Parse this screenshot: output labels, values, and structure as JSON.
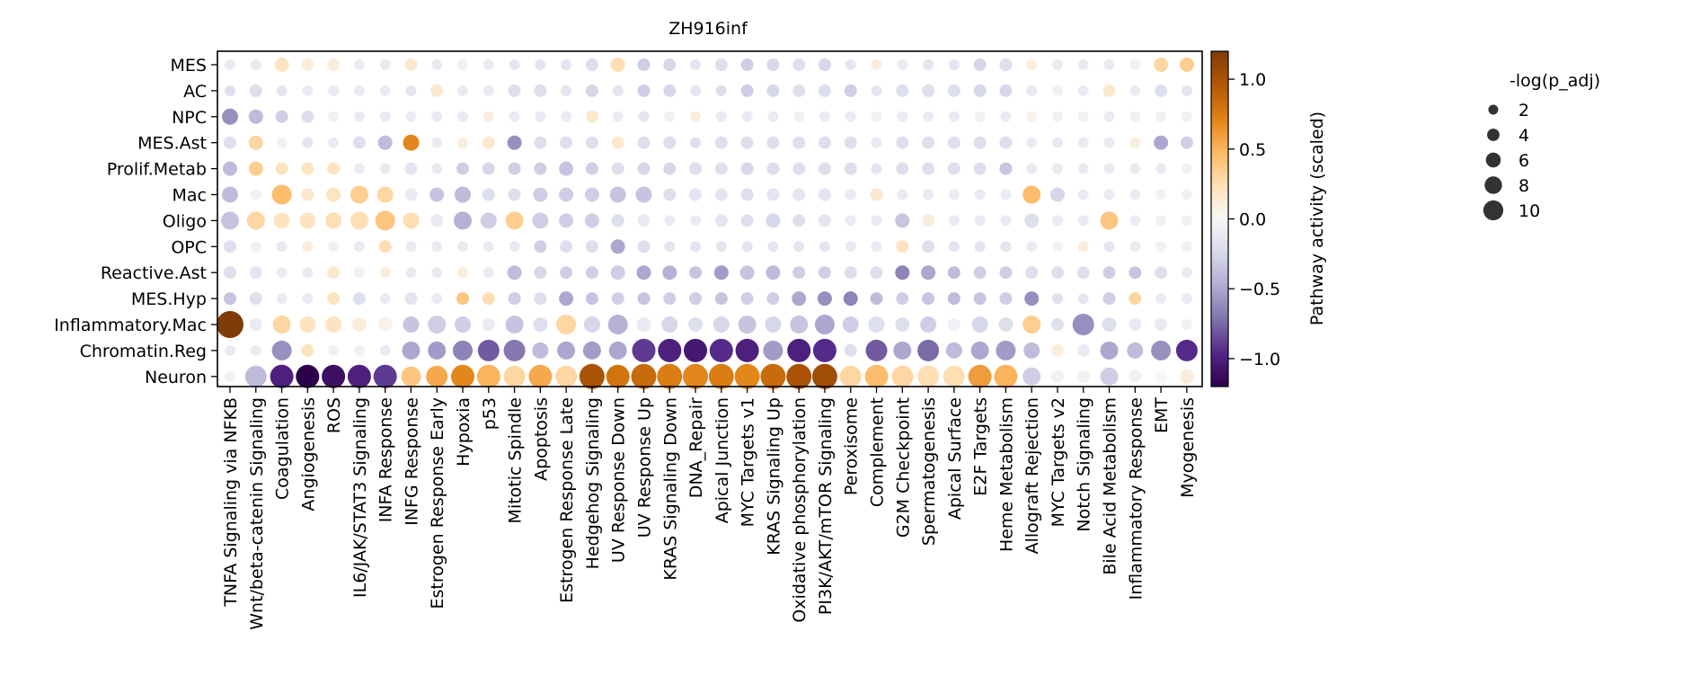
{
  "chart_data": {
    "type": "dotplot",
    "title": "ZH916inf",
    "rows": [
      "MES",
      "AC",
      "NPC",
      "MES.Ast",
      "Prolif.Metab",
      "Mac",
      "Oligo",
      "OPC",
      "Reactive.Ast",
      "MES.Hyp",
      "Inflammatory.Mac",
      "Chromatin.Reg",
      "Neuron"
    ],
    "columns": [
      "TNFA Signaling via NFKB",
      "Wnt/beta-catenin Signaling",
      "Coagulation",
      "Angiogenesis",
      "ROS",
      "IL6/JAK/STAT3 Signaling",
      "INFA Response",
      "INFG Response",
      "Estrogen Response Early",
      "Hypoxia",
      "p53",
      "Mitotic Spindle",
      "Apoptosis",
      "Estrogen Response Late",
      "Hedgehog Signaling",
      "UV Response Down",
      "UV Response Up",
      "KRAS Signaling Down",
      "DNA_Repair",
      "Apical Junction",
      "MYC Targets v1",
      "KRAS Signaling Up",
      "Oxidative phosphorylation",
      "PI3K/AKT/mTOR Signaling",
      "Peroxisome",
      "Complement",
      "G2M Checkpoint",
      "Spermatogenesis",
      "Apical Surface",
      "E2F Targets",
      "Heme Metabolism",
      "Allograft Rejection",
      "MYC Targets v2",
      "Notch Signaling",
      "Bile Acid Metabolism",
      "Inflammatory Response",
      "EMT",
      "Myogenesis"
    ],
    "activity": [
      [
        -0.1,
        -0.1,
        0.2,
        0.1,
        0.1,
        -0.1,
        -0.1,
        0.15,
        -0.1,
        -0.05,
        -0.1,
        -0.15,
        -0.15,
        -0.15,
        -0.2,
        0.25,
        -0.3,
        -0.25,
        -0.15,
        -0.2,
        -0.3,
        -0.25,
        -0.2,
        -0.25,
        -0.15,
        0.1,
        -0.1,
        -0.15,
        -0.15,
        -0.25,
        -0.2,
        0.1,
        -0.1,
        -0.1,
        -0.1,
        -0.05,
        0.3,
        0.35
      ],
      [
        -0.2,
        -0.2,
        -0.15,
        -0.1,
        -0.1,
        -0.1,
        -0.1,
        -0.15,
        0.15,
        -0.1,
        -0.1,
        -0.2,
        -0.2,
        -0.15,
        -0.25,
        -0.15,
        -0.3,
        -0.25,
        -0.15,
        -0.2,
        -0.3,
        -0.25,
        -0.2,
        -0.2,
        -0.3,
        -0.15,
        -0.2,
        -0.2,
        -0.2,
        -0.25,
        -0.25,
        -0.1,
        -0.05,
        -0.1,
        0.15,
        -0.1,
        -0.2,
        -0.15
      ],
      [
        -0.6,
        -0.4,
        -0.3,
        -0.2,
        -0.05,
        -0.1,
        -0.1,
        -0.1,
        -0.1,
        -0.1,
        0.1,
        -0.1,
        -0.1,
        -0.1,
        0.15,
        -0.1,
        -0.15,
        -0.05,
        0.1,
        -0.1,
        -0.1,
        -0.1,
        -0.05,
        -0.1,
        -0.1,
        -0.05,
        -0.1,
        -0.1,
        -0.1,
        -0.05,
        -0.1,
        0.05,
        -0.05,
        -0.05,
        -0.1,
        -0.05,
        -0.05,
        -0.05
      ],
      [
        -0.2,
        0.3,
        -0.05,
        -0.15,
        -0.1,
        -0.2,
        -0.4,
        0.7,
        -0.1,
        0.1,
        0.15,
        -0.6,
        -0.2,
        -0.2,
        -0.2,
        0.15,
        -0.2,
        -0.2,
        -0.2,
        -0.2,
        -0.2,
        -0.2,
        -0.2,
        -0.2,
        -0.2,
        -0.1,
        -0.2,
        -0.2,
        -0.2,
        -0.2,
        -0.2,
        -0.1,
        -0.1,
        -0.1,
        -0.1,
        0.1,
        -0.5,
        -0.3
      ],
      [
        -0.4,
        0.35,
        0.2,
        0.2,
        0.2,
        -0.1,
        -0.1,
        -0.15,
        -0.1,
        -0.3,
        -0.25,
        -0.3,
        -0.3,
        -0.35,
        -0.3,
        -0.2,
        -0.25,
        -0.25,
        -0.2,
        -0.2,
        -0.25,
        -0.2,
        -0.2,
        -0.2,
        -0.2,
        -0.15,
        -0.2,
        -0.2,
        -0.2,
        -0.2,
        -0.35,
        -0.1,
        -0.1,
        -0.1,
        -0.1,
        -0.1,
        -0.1,
        -0.05
      ],
      [
        -0.4,
        -0.05,
        0.45,
        0.15,
        0.2,
        0.35,
        0.3,
        -0.1,
        -0.35,
        -0.4,
        -0.2,
        -0.2,
        -0.3,
        -0.3,
        -0.3,
        -0.35,
        -0.35,
        -0.2,
        -0.15,
        -0.15,
        -0.2,
        -0.15,
        -0.15,
        -0.15,
        -0.1,
        0.15,
        -0.1,
        -0.1,
        -0.1,
        -0.1,
        -0.1,
        0.45,
        -0.25,
        -0.1,
        -0.1,
        -0.1,
        -0.05,
        -0.05
      ],
      [
        -0.35,
        0.3,
        0.2,
        0.2,
        0.25,
        0.25,
        0.4,
        0.25,
        -0.1,
        -0.45,
        -0.3,
        0.35,
        -0.3,
        -0.3,
        -0.3,
        -0.2,
        -0.1,
        -0.1,
        -0.1,
        -0.15,
        -0.2,
        -0.25,
        -0.2,
        -0.15,
        -0.1,
        -0.1,
        -0.35,
        0.1,
        -0.1,
        -0.1,
        -0.1,
        -0.2,
        -0.1,
        -0.1,
        0.4,
        -0.1,
        -0.05,
        -0.05
      ],
      [
        -0.2,
        -0.05,
        -0.1,
        0.1,
        -0.05,
        -0.1,
        0.25,
        -0.1,
        -0.1,
        -0.1,
        -0.1,
        -0.1,
        -0.3,
        -0.2,
        -0.2,
        -0.5,
        -0.2,
        -0.15,
        -0.15,
        -0.15,
        -0.15,
        -0.15,
        -0.15,
        -0.15,
        -0.1,
        -0.1,
        0.2,
        -0.2,
        -0.15,
        -0.15,
        -0.15,
        -0.1,
        -0.05,
        0.1,
        -0.15,
        -0.1,
        -0.05,
        -0.05
      ],
      [
        -0.2,
        -0.15,
        -0.1,
        -0.1,
        0.15,
        -0.05,
        0.1,
        -0.1,
        -0.1,
        0.1,
        -0.1,
        -0.4,
        -0.25,
        -0.3,
        -0.3,
        -0.3,
        -0.5,
        -0.45,
        -0.35,
        -0.55,
        -0.35,
        -0.4,
        -0.3,
        -0.3,
        -0.2,
        -0.2,
        -0.65,
        -0.5,
        -0.4,
        -0.3,
        -0.3,
        -0.2,
        -0.2,
        -0.2,
        -0.3,
        -0.35,
        -0.2,
        -0.1
      ],
      [
        -0.35,
        -0.2,
        -0.1,
        -0.1,
        0.2,
        -0.2,
        -0.1,
        -0.15,
        -0.1,
        0.4,
        0.25,
        -0.3,
        -0.2,
        -0.5,
        -0.35,
        -0.3,
        -0.35,
        -0.3,
        -0.3,
        -0.35,
        -0.3,
        -0.3,
        -0.5,
        -0.6,
        -0.65,
        -0.4,
        -0.3,
        -0.35,
        -0.4,
        -0.35,
        -0.3,
        -0.6,
        -0.2,
        -0.15,
        -0.3,
        0.3,
        -0.1,
        -0.1
      ],
      [
        1.2,
        -0.1,
        0.3,
        0.2,
        0.2,
        0.1,
        0.05,
        -0.35,
        -0.3,
        -0.3,
        -0.1,
        -0.35,
        -0.2,
        0.3,
        -0.25,
        -0.45,
        -0.1,
        -0.25,
        -0.2,
        -0.25,
        -0.35,
        -0.25,
        -0.35,
        -0.5,
        -0.3,
        -0.2,
        -0.2,
        -0.3,
        -0.05,
        -0.25,
        -0.2,
        0.35,
        -0.2,
        -0.6,
        -0.2,
        -0.1,
        -0.1,
        -0.05
      ],
      [
        -0.1,
        -0.1,
        -0.6,
        0.2,
        -0.05,
        -0.05,
        -0.1,
        -0.5,
        -0.55,
        -0.65,
        -0.8,
        -0.7,
        -0.4,
        -0.5,
        -0.55,
        -0.5,
        -0.9,
        -1.0,
        -1.05,
        -0.95,
        -1.0,
        -0.55,
        -1.0,
        -0.95,
        -0.2,
        -0.8,
        -0.5,
        -0.75,
        -0.4,
        -0.5,
        -0.55,
        -0.4,
        0.1,
        -0.1,
        -0.5,
        -0.4,
        -0.6,
        -0.95
      ],
      [
        -0.05,
        -0.4,
        -1.0,
        -1.2,
        -1.1,
        -1.0,
        -0.9,
        0.4,
        0.55,
        0.7,
        0.5,
        0.3,
        0.55,
        0.3,
        1.0,
        0.8,
        0.85,
        0.75,
        0.7,
        0.75,
        0.7,
        0.85,
        1.0,
        1.05,
        0.3,
        0.45,
        0.3,
        0.25,
        0.25,
        0.6,
        0.5,
        -0.3,
        -0.05,
        -0.05,
        -0.3,
        -0.05,
        0.0,
        0.1
      ]
    ],
    "size_levels": [
      [
        2,
        2,
        4,
        3,
        3,
        2,
        2,
        3,
        2,
        2,
        2,
        2,
        2,
        2,
        3,
        4,
        3,
        3,
        2,
        3,
        3,
        3,
        3,
        3,
        2,
        2,
        2,
        2,
        2,
        3,
        3,
        2,
        2,
        2,
        2,
        2,
        4,
        4
      ],
      [
        2,
        3,
        2,
        2,
        2,
        2,
        2,
        2,
        3,
        2,
        2,
        3,
        3,
        2,
        3,
        2,
        3,
        3,
        2,
        2,
        3,
        3,
        3,
        3,
        3,
        2,
        3,
        3,
        3,
        3,
        3,
        2,
        2,
        2,
        3,
        2,
        3,
        2
      ],
      [
        5,
        4,
        3,
        3,
        2,
        2,
        2,
        2,
        2,
        2,
        2,
        2,
        2,
        2,
        3,
        2,
        2,
        2,
        2,
        2,
        2,
        2,
        2,
        2,
        2,
        2,
        2,
        2,
        2,
        2,
        2,
        2,
        2,
        2,
        2,
        2,
        2,
        2
      ],
      [
        3,
        4,
        2,
        2,
        2,
        3,
        4,
        5,
        2,
        2,
        3,
        4,
        3,
        3,
        3,
        3,
        3,
        3,
        2,
        3,
        3,
        3,
        3,
        3,
        3,
        2,
        3,
        3,
        3,
        3,
        3,
        2,
        2,
        2,
        2,
        2,
        4,
        3
      ],
      [
        4,
        4,
        3,
        3,
        3,
        2,
        2,
        3,
        2,
        3,
        3,
        3,
        3,
        4,
        3,
        3,
        3,
        3,
        3,
        3,
        3,
        3,
        3,
        3,
        3,
        2,
        3,
        3,
        3,
        3,
        3,
        2,
        2,
        2,
        2,
        2,
        2,
        2
      ],
      [
        5,
        2,
        7,
        3,
        4,
        6,
        5,
        3,
        4,
        5,
        3,
        3,
        4,
        4,
        4,
        5,
        5,
        3,
        3,
        3,
        3,
        3,
        3,
        3,
        2,
        3,
        2,
        2,
        2,
        2,
        2,
        6,
        4,
        2,
        2,
        2,
        2,
        2
      ],
      [
        6,
        6,
        5,
        5,
        5,
        6,
        7,
        5,
        3,
        6,
        5,
        6,
        5,
        4,
        4,
        3,
        3,
        2,
        2,
        3,
        3,
        4,
        3,
        3,
        2,
        2,
        4,
        3,
        2,
        2,
        2,
        4,
        2,
        2,
        6,
        2,
        2,
        2
      ],
      [
        3,
        2,
        2,
        2,
        2,
        2,
        3,
        2,
        2,
        2,
        2,
        2,
        3,
        3,
        3,
        4,
        3,
        2,
        2,
        2,
        2,
        2,
        2,
        2,
        2,
        2,
        3,
        3,
        2,
        2,
        2,
        2,
        2,
        2,
        2,
        2,
        2,
        2
      ],
      [
        3,
        3,
        2,
        2,
        3,
        2,
        2,
        2,
        2,
        2,
        2,
        4,
        3,
        3,
        3,
        4,
        4,
        4,
        3,
        4,
        4,
        4,
        3,
        3,
        3,
        3,
        4,
        4,
        3,
        3,
        3,
        3,
        3,
        3,
        3,
        3,
        3,
        2
      ],
      [
        3,
        3,
        2,
        2,
        3,
        3,
        2,
        3,
        2,
        3,
        3,
        3,
        3,
        4,
        3,
        3,
        3,
        3,
        3,
        3,
        3,
        3,
        4,
        4,
        4,
        3,
        3,
        3,
        3,
        3,
        3,
        4,
        2,
        2,
        3,
        3,
        2,
        2
      ],
      [
        11,
        3,
        6,
        5,
        5,
        4,
        4,
        5,
        6,
        5,
        3,
        6,
        4,
        7,
        5,
        7,
        4,
        5,
        4,
        5,
        6,
        5,
        6,
        7,
        5,
        5,
        4,
        5,
        3,
        5,
        4,
        6,
        3,
        8,
        4,
        3,
        3,
        2
      ],
      [
        2,
        2,
        7,
        3,
        2,
        2,
        2,
        6,
        6,
        7,
        8,
        8,
        5,
        6,
        6,
        6,
        9,
        9,
        9,
        9,
        9,
        7,
        9,
        9,
        3,
        8,
        6,
        8,
        5,
        6,
        7,
        5,
        3,
        3,
        6,
        5,
        7,
        8
      ],
      [
        2,
        8,
        9,
        9,
        9,
        9,
        9,
        7,
        8,
        9,
        9,
        8,
        9,
        8,
        10,
        9,
        10,
        10,
        10,
        10,
        10,
        10,
        10,
        10,
        8,
        9,
        8,
        8,
        8,
        9,
        9,
        6,
        3,
        3,
        6,
        3,
        3,
        4
      ]
    ],
    "colorbar": {
      "label": "Pathway activity (scaled)",
      "range": [
        -1.2,
        1.2
      ],
      "ticks": [
        1.0,
        0.5,
        0.0,
        -0.5,
        -1.0
      ],
      "tick_labels": [
        "1.0",
        "0.5",
        "0.0",
        "−0.5",
        "−1.0"
      ],
      "colormap": "PuOr_r",
      "colors": [
        "#2d004b",
        "#542788",
        "#8073ac",
        "#b2abd2",
        "#d8daeb",
        "#f7f7f7",
        "#fee0b6",
        "#fdb863",
        "#e08214",
        "#b35806",
        "#7f3b08"
      ]
    },
    "size_legend": {
      "title": "-log(p_adj)",
      "values": [
        2,
        4,
        6,
        8,
        10
      ]
    }
  }
}
